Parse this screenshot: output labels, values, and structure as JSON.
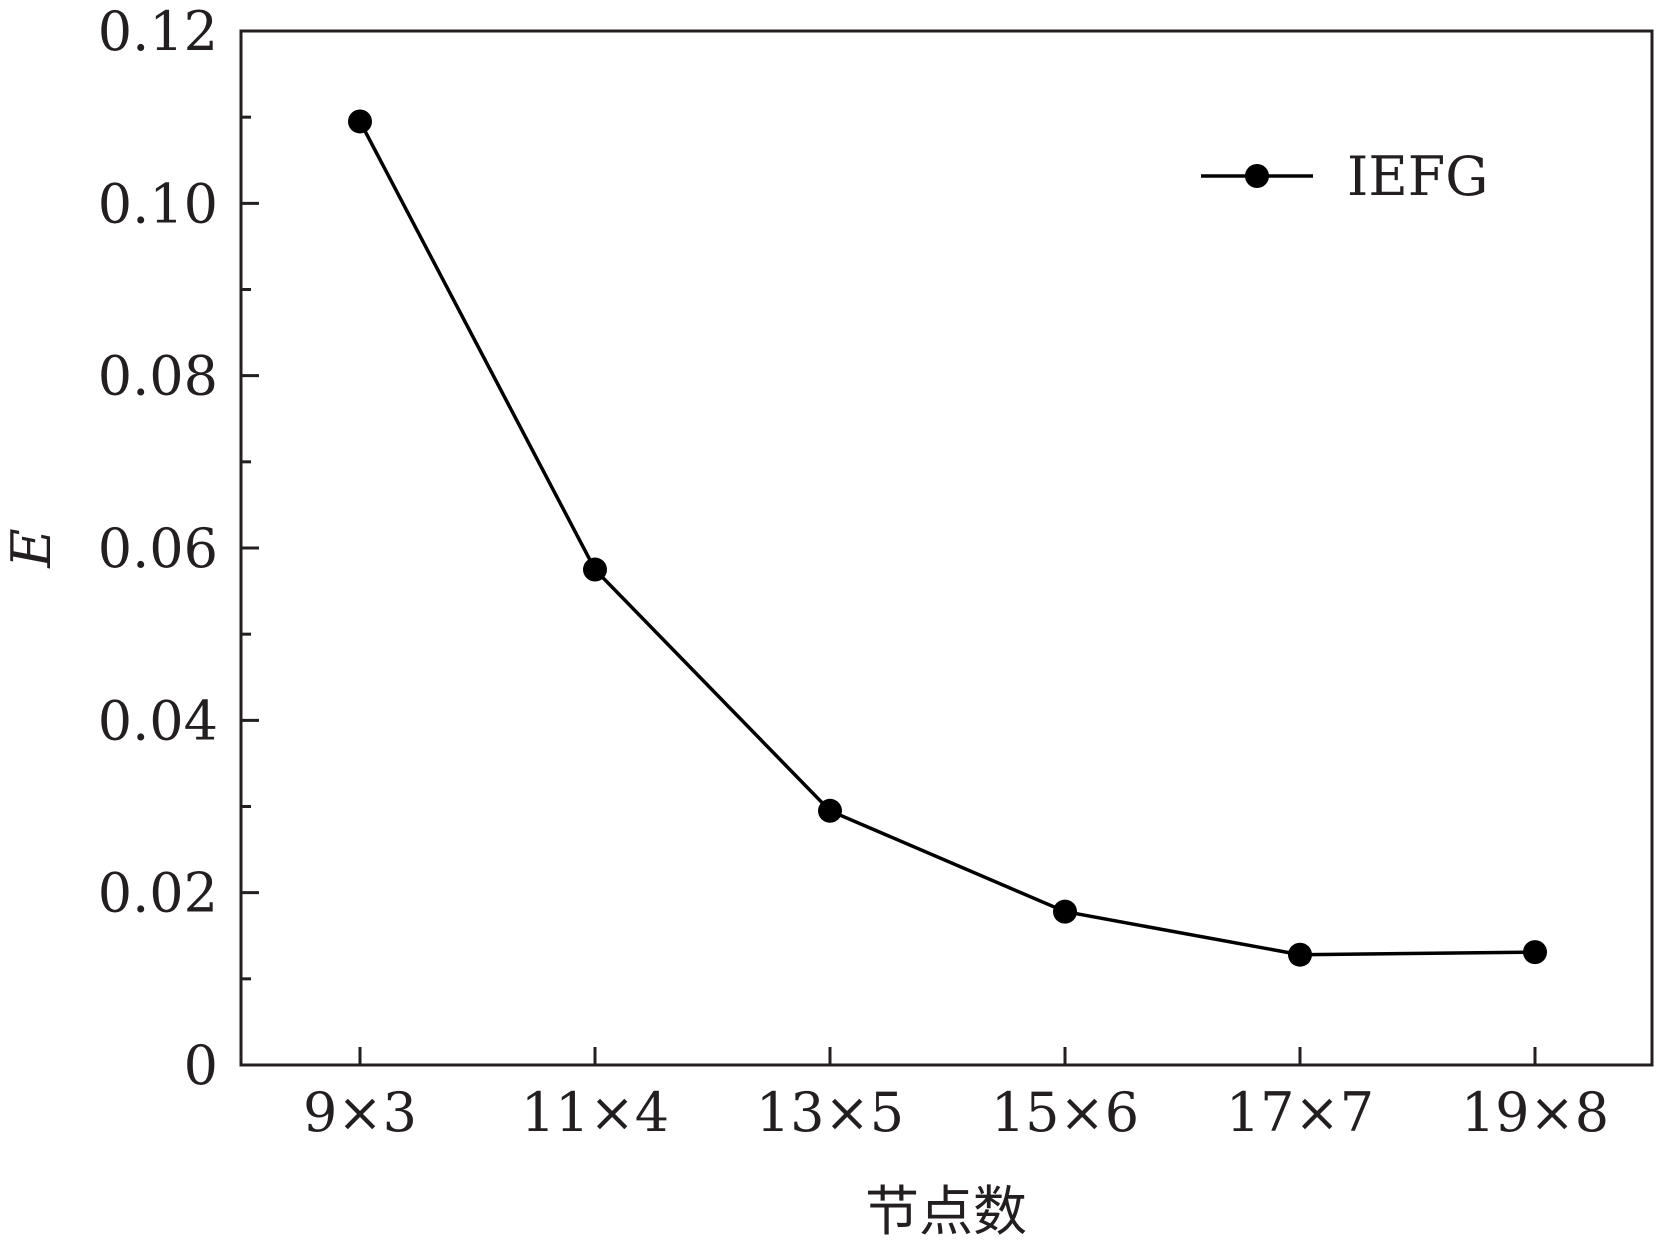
{
  "chart_data": {
    "type": "line",
    "title": "",
    "xlabel": "节点数",
    "ylabel": "E",
    "categories": [
      "9×3",
      "11×4",
      "13×5",
      "15×6",
      "17×7",
      "19×8"
    ],
    "series": [
      {
        "name": "IEFG",
        "values": [
          0.1095,
          0.0575,
          0.0295,
          0.0178,
          0.0128,
          0.0131
        ]
      }
    ],
    "ylim": [
      0,
      0.12
    ],
    "yticks": [
      {
        "value": 0,
        "label": "0"
      },
      {
        "value": 0.02,
        "label": "0.02"
      },
      {
        "value": 0.04,
        "label": "0.04"
      },
      {
        "value": 0.06,
        "label": "0.06"
      },
      {
        "value": 0.08,
        "label": "0.08"
      },
      {
        "value": 0.1,
        "label": "0.10"
      },
      {
        "value": 0.12,
        "label": "0.12"
      }
    ],
    "y_minor_step": 0.01,
    "grid": false,
    "legend": "top-right",
    "colors": {
      "series": "#000000",
      "axis": "#231f20"
    }
  }
}
